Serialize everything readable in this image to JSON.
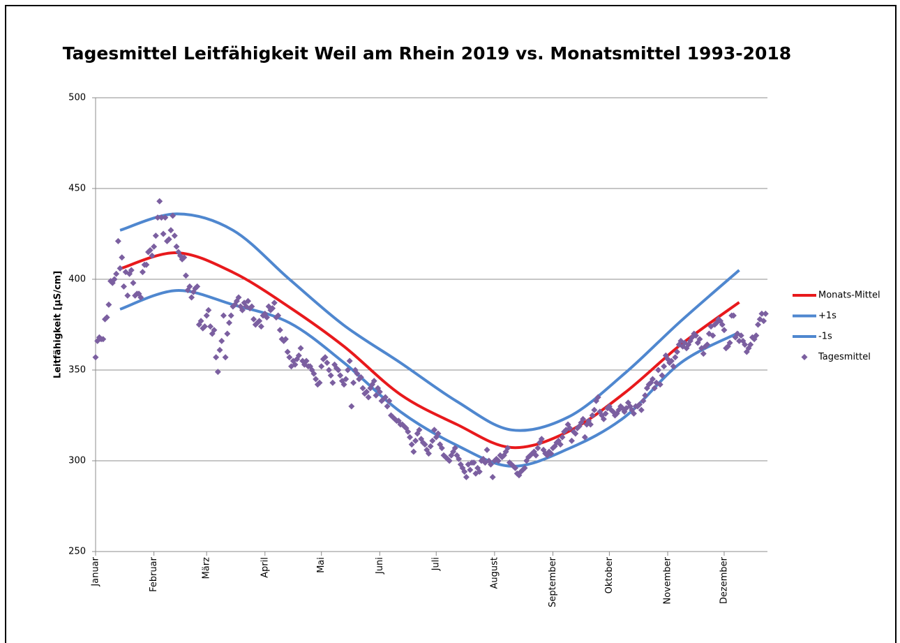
{
  "chart_data": {
    "type": "line",
    "title": "Tagesmittel Leitfähigkeit Weil am Rhein 2019 vs. Monatsmittel 1993-2018",
    "y_label": "Leitfähigkeit [µS/cm]",
    "xlim": [
      0,
      357
    ],
    "ylim": [
      250,
      500
    ],
    "yticks": [
      250,
      300,
      350,
      400,
      450,
      500
    ],
    "xticks": [
      {
        "value": 0,
        "label": "Januar"
      },
      {
        "value": 31,
        "label": "Februar"
      },
      {
        "value": 59,
        "label": "März"
      },
      {
        "value": 90,
        "label": "April"
      },
      {
        "value": 120,
        "label": "Mai"
      },
      {
        "value": 151,
        "label": "Juni"
      },
      {
        "value": 181,
        "label": "Juli"
      },
      {
        "value": 212,
        "label": "August"
      },
      {
        "value": 243,
        "label": "September"
      },
      {
        "value": 273,
        "label": "Oktober"
      },
      {
        "value": 304,
        "label": "November"
      },
      {
        "value": 334,
        "label": "Dezember"
      }
    ],
    "grid": true,
    "legend": "right",
    "series": [
      {
        "name": "Monats-Mittel",
        "type": "line",
        "color": "#e8191c",
        "x": [
          13,
          43,
          73,
          103,
          132,
          162,
          192,
          221,
          251,
          281,
          311,
          342
        ],
        "values": [
          405.8,
          414.6,
          403.8,
          384.6,
          363,
          336.5,
          320,
          307.3,
          316,
          337.3,
          364,
          387.3
        ]
      },
      {
        "name": "+1s",
        "type": "line",
        "color": "#4f87cf",
        "x": [
          13,
          43,
          73,
          103,
          132,
          162,
          192,
          221,
          251,
          281,
          311,
          342
        ],
        "values": [
          427,
          436,
          427,
          400,
          374.6,
          354,
          332.7,
          317,
          324,
          348,
          377,
          405
        ]
      },
      {
        "name": "-1s",
        "type": "line",
        "color": "#4f87cf",
        "x": [
          13,
          43,
          73,
          103,
          132,
          162,
          192,
          221,
          251,
          281,
          311,
          342
        ],
        "values": [
          383.5,
          393.8,
          386,
          376,
          354,
          327,
          308.5,
          297,
          306.5,
          324,
          354,
          370.7
        ]
      },
      {
        "name": "Tagesmittel",
        "type": "scatter",
        "color": "#7b5fa0",
        "x": [
          0,
          1,
          2,
          3,
          4,
          5,
          6,
          7,
          8,
          9,
          10,
          11,
          12,
          13,
          14,
          15,
          16,
          17,
          18,
          19,
          20,
          21,
          22,
          23,
          24,
          25,
          26,
          27,
          28,
          29,
          30,
          31,
          32,
          33,
          34,
          35,
          36,
          37,
          38,
          39,
          40,
          41,
          42,
          43,
          44,
          45,
          46,
          47,
          48,
          49,
          50,
          51,
          52,
          53,
          54,
          55,
          56,
          57,
          58,
          59,
          60,
          61,
          62,
          63,
          64,
          65,
          66,
          67,
          68,
          69,
          70,
          71,
          72,
          73,
          74,
          75,
          76,
          77,
          78,
          79,
          80,
          81,
          82,
          83,
          84,
          85,
          86,
          87,
          88,
          89,
          90,
          91,
          92,
          93,
          94,
          95,
          96,
          97,
          98,
          99,
          100,
          101,
          102,
          103,
          104,
          105,
          106,
          107,
          108,
          109,
          110,
          111,
          112,
          113,
          114,
          115,
          116,
          117,
          118,
          119,
          120,
          121,
          122,
          123,
          124,
          125,
          126,
          127,
          128,
          129,
          130,
          131,
          132,
          133,
          134,
          135,
          136,
          137,
          138,
          139,
          140,
          141,
          142,
          143,
          144,
          145,
          146,
          147,
          148,
          149,
          150,
          151,
          152,
          153,
          154,
          155,
          156,
          157,
          158,
          159,
          160,
          161,
          162,
          163,
          164,
          165,
          166,
          167,
          168,
          169,
          170,
          171,
          172,
          173,
          174,
          175,
          176,
          177,
          178,
          179,
          180,
          181,
          182,
          183,
          184,
          185,
          186,
          187,
          188,
          189,
          190,
          191,
          192,
          193,
          194,
          195,
          196,
          197,
          198,
          199,
          200,
          201,
          202,
          203,
          204,
          205,
          206,
          207,
          208,
          209,
          210,
          211,
          212,
          213,
          214,
          215,
          216,
          217,
          218,
          219,
          220,
          221,
          222,
          223,
          224,
          225,
          226,
          227,
          228,
          229,
          230,
          231,
          232,
          233,
          234,
          235,
          236,
          237,
          238,
          239,
          240,
          241,
          242,
          243,
          244,
          245,
          246,
          247,
          248,
          249,
          250,
          251,
          252,
          253,
          254,
          255,
          256,
          257,
          258,
          259,
          260,
          261,
          262,
          263,
          264,
          265,
          266,
          267,
          268,
          269,
          270,
          271,
          272,
          273,
          274,
          275,
          276,
          277,
          278,
          279,
          280,
          281,
          282,
          283,
          284,
          285,
          286,
          287,
          288,
          289,
          290,
          291,
          292,
          293,
          294,
          295,
          296,
          297,
          298,
          299,
          300,
          301,
          302,
          303,
          304,
          305,
          306,
          307,
          308,
          309,
          310,
          311,
          312,
          313,
          314,
          315,
          316,
          317,
          318,
          319,
          320,
          321,
          322,
          323,
          324,
          325,
          326,
          327,
          328,
          329,
          330,
          331,
          332,
          333,
          334,
          335,
          336,
          337,
          338,
          339,
          340,
          341,
          342,
          343,
          344,
          345,
          346,
          347,
          348,
          349,
          350,
          351,
          352,
          353,
          354,
          355,
          356
        ],
        "values": [
          357,
          366,
          368,
          367,
          367,
          378,
          379,
          386,
          399,
          398,
          400,
          403,
          421,
          406,
          412,
          396,
          404,
          391,
          403,
          405,
          398,
          391,
          392,
          392,
          390,
          404,
          408,
          408,
          415,
          416,
          413,
          418,
          424,
          434,
          443,
          434,
          425,
          434,
          421,
          422,
          427,
          435,
          424,
          418,
          415,
          413,
          411,
          412,
          402,
          394,
          396,
          390,
          393,
          395,
          396,
          375,
          377,
          373,
          374,
          380,
          383,
          374,
          370,
          372,
          357,
          349,
          361,
          366,
          380,
          357,
          370,
          376,
          380,
          385,
          386,
          388,
          390,
          385,
          383,
          387,
          385,
          388,
          384,
          385,
          378,
          375,
          376,
          377,
          374,
          380,
          381,
          379,
          385,
          383,
          384,
          387,
          379,
          380,
          372,
          367,
          366,
          367,
          360,
          357,
          352,
          355,
          353,
          356,
          358,
          362,
          355,
          353,
          355,
          352,
          352,
          350,
          348,
          345,
          342,
          343,
          352,
          356,
          357,
          354,
          350,
          347,
          343,
          353,
          351,
          350,
          347,
          344,
          342,
          345,
          350,
          355,
          330,
          343,
          350,
          348,
          345,
          346,
          340,
          337,
          338,
          335,
          340,
          342,
          344,
          336,
          340,
          338,
          333,
          334,
          335,
          330,
          333,
          325,
          324,
          323,
          322,
          322,
          320,
          320,
          319,
          318,
          316,
          313,
          309,
          305,
          311,
          315,
          317,
          312,
          310,
          309,
          306,
          304,
          308,
          311,
          317,
          313,
          315,
          309,
          307,
          303,
          302,
          301,
          300,
          303,
          305,
          307,
          303,
          301,
          298,
          296,
          294,
          291,
          298,
          295,
          299,
          299,
          293,
          296,
          294,
          300,
          301,
          299,
          306,
          300,
          298,
          291,
          300,
          301,
          300,
          303,
          302,
          303,
          305,
          307,
          299,
          298,
          297,
          296,
          293,
          292,
          294,
          295,
          296,
          300,
          302,
          303,
          304,
          305,
          303,
          307,
          310,
          312,
          306,
          304,
          303,
          305,
          304,
          307,
          308,
          310,
          311,
          309,
          313,
          316,
          317,
          320,
          318,
          311,
          316,
          315,
          318,
          319,
          321,
          323,
          313,
          320,
          322,
          320,
          325,
          328,
          333,
          335,
          327,
          325,
          323,
          326,
          329,
          330,
          328,
          327,
          325,
          326,
          328,
          330,
          329,
          327,
          329,
          332,
          330,
          328,
          326,
          330,
          330,
          331,
          328,
          333,
          336,
          340,
          342,
          343,
          345,
          340,
          343,
          350,
          342,
          347,
          352,
          358,
          356,
          354,
          355,
          352,
          357,
          360,
          364,
          366,
          363,
          365,
          362,
          364,
          366,
          368,
          370,
          369,
          365,
          367,
          362,
          359,
          363,
          364,
          370,
          374,
          369,
          375,
          376,
          378,
          377,
          375,
          372,
          362,
          363,
          365,
          380,
          380,
          368,
          370,
          366,
          369,
          366,
          364,
          360,
          362,
          364,
          368,
          367,
          369,
          375,
          378,
          381,
          377,
          381
        ]
      }
    ]
  }
}
